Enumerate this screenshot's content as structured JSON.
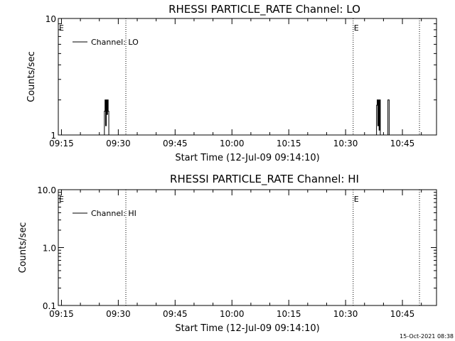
{
  "chart_data": [
    {
      "type": "line",
      "title": "RHESSI PARTICLE_RATE Channel: LO",
      "xlabel": "Start Time (12-Jul-09 09:14:10)",
      "ylabel": "Counts/sec",
      "y_scale": "log",
      "ylim": [
        1,
        10
      ],
      "yticks": [
        "1",
        "10"
      ],
      "xlim": [
        "09:14:10",
        "10:54:00"
      ],
      "xticks": [
        "09:15",
        "09:30",
        "09:45",
        "10:00",
        "10:15",
        "10:30",
        "10:45"
      ],
      "grid": false,
      "legend_position": "top-left",
      "series": [
        {
          "name": "Channel: LO",
          "color": "#000000",
          "x": [
            "09:26:00",
            "09:26:20",
            "09:26:30",
            "09:26:40",
            "09:26:50",
            "09:27:00",
            "09:27:10",
            "09:27:20",
            "09:27:30",
            "10:38:00",
            "10:38:10",
            "10:38:20",
            "10:38:30",
            "10:38:40",
            "10:38:50",
            "10:39:00",
            "10:39:10",
            "10:41:00",
            "10:41:10",
            "10:41:20",
            "10:41:30"
          ],
          "y": [
            1,
            1.6,
            2,
            1.2,
            2,
            1.5,
            2,
            1.6,
            1,
            1,
            1.8,
            2,
            1.2,
            2,
            1.1,
            2,
            1,
            1,
            2,
            2,
            1
          ]
        }
      ],
      "event_markers": [
        {
          "time": "09:14:10",
          "label": "E"
        },
        {
          "time": "09:32:00",
          "label": ""
        },
        {
          "time": "10:32:00",
          "label": "E"
        },
        {
          "time": "10:49:30",
          "label": ""
        }
      ]
    },
    {
      "type": "line",
      "title": "RHESSI PARTICLE_RATE Channel: HI",
      "xlabel": "Start Time (12-Jul-09 09:14:10)",
      "ylabel": "Counts/sec",
      "y_scale": "log",
      "ylim": [
        0.1,
        10
      ],
      "yticks": [
        "0.1",
        "1.0",
        "10.0"
      ],
      "xlim": [
        "09:14:10",
        "10:54:00"
      ],
      "xticks": [
        "09:15",
        "09:30",
        "09:45",
        "10:00",
        "10:15",
        "10:30",
        "10:45"
      ],
      "grid": false,
      "legend_position": "top-left",
      "series": [
        {
          "name": "Channel: HI",
          "color": "#000000",
          "x": [],
          "y": []
        }
      ],
      "event_markers": [
        {
          "time": "09:14:10",
          "label": "E"
        },
        {
          "time": "09:32:00",
          "label": ""
        },
        {
          "time": "10:32:00",
          "label": "E"
        },
        {
          "time": "10:49:30",
          "label": ""
        }
      ]
    }
  ],
  "footer": {
    "timestamp": "15-Oct-2021 08:38"
  }
}
